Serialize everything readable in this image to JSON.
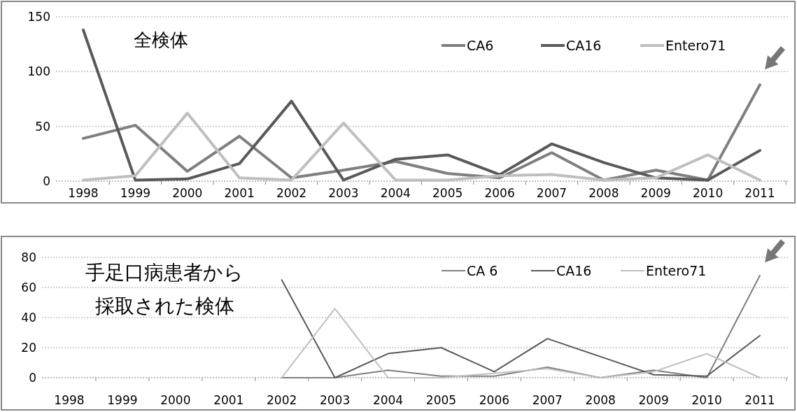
{
  "chart_data": [
    {
      "type": "line",
      "title": "全検体",
      "categories": [
        "1998",
        "1999",
        "2000",
        "2001",
        "2002",
        "2003",
        "2004",
        "2005",
        "2006",
        "2007",
        "2008",
        "2009",
        "2010",
        "2011"
      ],
      "series": [
        {
          "name": "CA6",
          "color": "#7f7f7f",
          "values": [
            39,
            51,
            9,
            41,
            3,
            10,
            18,
            7,
            3,
            26,
            1,
            10,
            1,
            88
          ]
        },
        {
          "name": "CA16",
          "color": "#595959",
          "values": [
            138,
            1,
            2,
            16,
            73,
            1,
            20,
            24,
            6,
            34,
            17,
            3,
            1,
            28
          ]
        },
        {
          "name": "Entero71",
          "color": "#bfbfbf",
          "values": [
            1,
            5,
            62,
            3,
            1,
            53,
            1,
            1,
            5,
            6,
            1,
            3,
            24,
            1
          ]
        }
      ],
      "ylim": [
        0,
        150
      ],
      "yticks": [
        0,
        50,
        100,
        150
      ],
      "grid": "y",
      "legend": "top right"
    },
    {
      "type": "line",
      "title": "手足口病患者から採取された検体",
      "categories": [
        "1998",
        "1999",
        "2000",
        "2001",
        "2002",
        "2003",
        "2004",
        "2005",
        "2006",
        "2007",
        "2008",
        "2009",
        "2010",
        "2011"
      ],
      "series": [
        {
          "name": "CA 6",
          "color": "#7f7f7f",
          "values": [
            null,
            null,
            null,
            null,
            0,
            0,
            5,
            1,
            1,
            7,
            0,
            5,
            0,
            68
          ]
        },
        {
          "name": "CA16",
          "color": "#595959",
          "values": [
            null,
            null,
            null,
            null,
            65,
            0,
            16,
            20,
            4,
            26,
            14,
            2,
            1,
            28
          ]
        },
        {
          "name": "Entero71",
          "color": "#bfbfbf",
          "values": [
            null,
            null,
            null,
            null,
            0,
            46,
            0,
            0,
            3,
            6,
            0,
            4,
            16,
            0
          ]
        }
      ],
      "ylim": [
        0,
        80
      ],
      "yticks": [
        0,
        20,
        40,
        60,
        80
      ],
      "grid": "y",
      "legend": "top right"
    }
  ]
}
